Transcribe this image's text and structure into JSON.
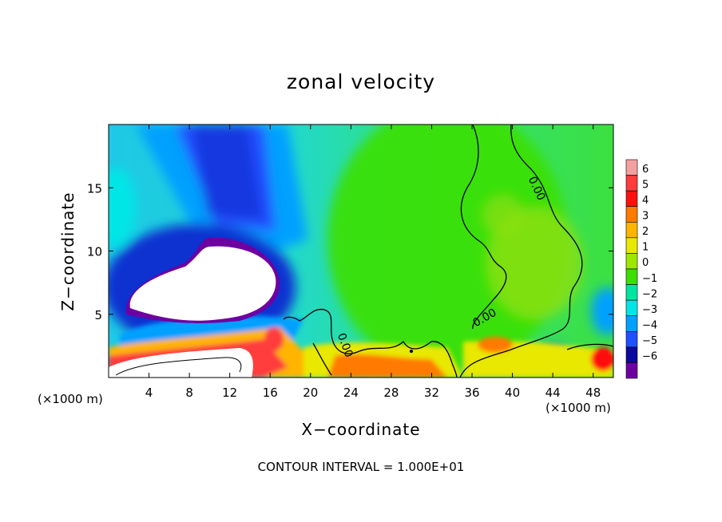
{
  "chart_data": {
    "type": "heatmap",
    "title": "zonal velocity",
    "xlabel": "X−coordinate",
    "ylabel": "Z−coordinate",
    "x_unit_left": "(×1000 m)",
    "x_unit_right": "(×1000 m)",
    "footnote": "CONTOUR INTERVAL = 1.000E+01",
    "xlim": [
      0,
      50
    ],
    "ylim": [
      0,
      20
    ],
    "x_ticks": [
      4,
      8,
      12,
      16,
      20,
      24,
      28,
      32,
      36,
      40,
      44,
      48
    ],
    "y_ticks": [
      5,
      10,
      15
    ],
    "colorbar": {
      "levels": [
        6,
        5,
        4,
        3,
        2,
        1,
        0,
        -1,
        -2,
        -3,
        -4,
        -5,
        -6
      ],
      "labels": [
        "6",
        "5",
        "4",
        "3",
        "2",
        "1",
        "0",
        "−1",
        "−2",
        "−3",
        "−4",
        "−5",
        "−6"
      ],
      "colors": [
        "#f4a0a0",
        "#ff3c3c",
        "#ff1010",
        "#ff7a00",
        "#ffb400",
        "#e8e800",
        "#9ee800",
        "#3ce000",
        "#00e6a0",
        "#00e6e6",
        "#00a0ff",
        "#2050ff",
        "#0a0aa0",
        "#6e00a0"
      ]
    },
    "contour_labels": [
      "0.00",
      "0.00",
      "0.00"
    ],
    "grid": false
  }
}
